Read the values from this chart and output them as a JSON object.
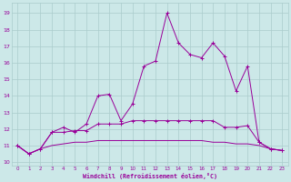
{
  "x": [
    0,
    1,
    2,
    3,
    4,
    5,
    6,
    7,
    8,
    9,
    10,
    11,
    12,
    13,
    14,
    15,
    16,
    17,
    18,
    19,
    20,
    21,
    22,
    23
  ],
  "line_bottom": [
    11.0,
    10.5,
    10.8,
    11.0,
    11.1,
    11.2,
    11.2,
    11.3,
    11.3,
    11.3,
    11.3,
    11.3,
    11.3,
    11.3,
    11.3,
    11.3,
    11.3,
    11.2,
    11.2,
    11.1,
    11.1,
    11.0,
    10.8,
    10.7
  ],
  "line_mid": [
    11.0,
    10.5,
    10.8,
    11.8,
    11.8,
    11.9,
    11.9,
    12.3,
    12.3,
    12.3,
    12.5,
    12.5,
    12.5,
    12.5,
    12.5,
    12.5,
    12.5,
    12.5,
    12.1,
    12.1,
    12.2,
    11.2,
    10.8,
    10.7
  ],
  "line_top": [
    11.0,
    10.5,
    10.8,
    11.8,
    12.1,
    11.8,
    12.3,
    14.0,
    14.1,
    12.5,
    13.5,
    15.8,
    16.1,
    19.0,
    17.2,
    16.5,
    16.3,
    17.2,
    16.4,
    14.3,
    15.8,
    11.2,
    10.8,
    10.7
  ],
  "bg_color": "#cce8e8",
  "grid_color": "#aacccc",
  "line_color": "#990099",
  "xlabel": "Windchill (Refroidissement éolien,°C)",
  "ylabel_ticks": [
    10,
    11,
    12,
    13,
    14,
    15,
    16,
    17,
    18,
    19
  ],
  "xtick_labels": [
    "0",
    "1",
    "2",
    "3",
    "4",
    "5",
    "6",
    "7",
    "8",
    "9",
    "10",
    "11",
    "12",
    "13",
    "14",
    "15",
    "16",
    "17",
    "18",
    "19",
    "20",
    "21",
    "22",
    "23"
  ],
  "xlim": [
    -0.5,
    23.5
  ],
  "ylim": [
    9.8,
    19.6
  ]
}
